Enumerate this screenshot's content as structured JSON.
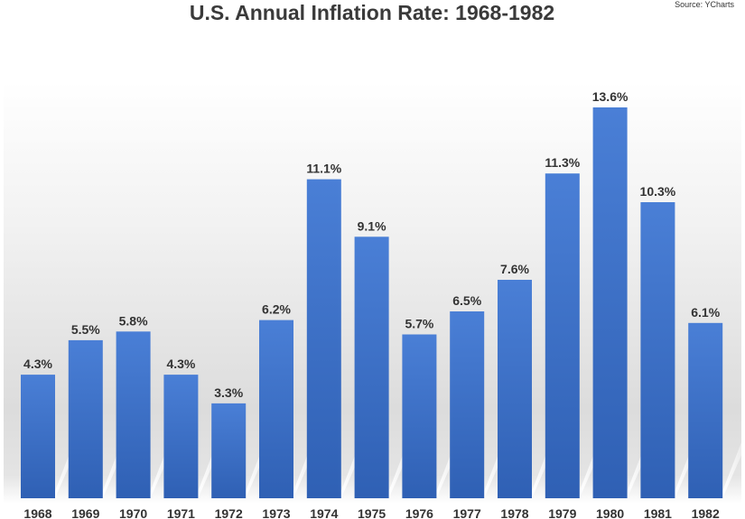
{
  "chart_data": {
    "type": "bar",
    "title": "U.S. Annual Inflation Rate: 1968-1982",
    "source": "Source: YCharts",
    "xlabel": "",
    "ylabel": "",
    "categories": [
      "1968",
      "1969",
      "1970",
      "1971",
      "1972",
      "1973",
      "1974",
      "1975",
      "1976",
      "1977",
      "1978",
      "1979",
      "1980",
      "1981",
      "1982"
    ],
    "values": [
      4.3,
      5.5,
      5.8,
      4.3,
      3.3,
      6.2,
      11.1,
      9.1,
      5.7,
      6.5,
      7.6,
      11.3,
      13.6,
      10.3,
      6.1
    ],
    "value_labels": [
      "4.3%",
      "5.5%",
      "5.8%",
      "4.3%",
      "3.3%",
      "6.2%",
      "11.1%",
      "9.1%",
      "5.7%",
      "6.5%",
      "7.6%",
      "11.3%",
      "13.6%",
      "10.3%",
      "6.1%"
    ],
    "ylim": [
      0,
      14.5
    ],
    "grid": false,
    "legend": "none",
    "colors": {
      "bar_top": "#4a7fd6",
      "bar_bottom": "#2e5fb3",
      "background_top": "#ffffff",
      "background_mid": "#dadada",
      "text": "#333333",
      "title": "#3a3a3a"
    }
  }
}
